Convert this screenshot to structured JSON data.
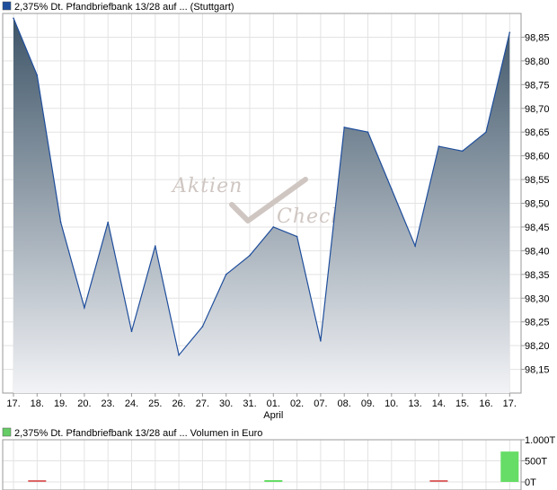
{
  "chart_data": [
    {
      "type": "area",
      "legend": "2,375% Dt. Pfandbriefbank 13/28 auf ... (Stuttgart)",
      "colors": {
        "line": "#1f4e9c",
        "fill_top": "#3e5568",
        "fill_bottom": "#f2f3f6",
        "legend_box": "#1f4e9c"
      },
      "categories": [
        "17.",
        "18.",
        "19.",
        "20.",
        "23.",
        "24.",
        "25.",
        "26.",
        "27.",
        "30.",
        "31.",
        "01.",
        "02.",
        "07.",
        "08.",
        "09.",
        "10.",
        "13.",
        "14.",
        "15.",
        "16.",
        "17."
      ],
      "month_label": "April",
      "month_label_index": 11,
      "values": [
        98.89,
        98.77,
        98.46,
        98.28,
        98.46,
        98.23,
        98.41,
        98.18,
        98.24,
        98.35,
        98.39,
        98.45,
        98.43,
        98.21,
        98.66,
        98.65,
        98.53,
        98.41,
        98.62,
        98.61,
        98.65,
        98.86
      ],
      "ylim": [
        98.1,
        98.9
      ],
      "yticks": [
        98.15,
        98.2,
        98.25,
        98.3,
        98.35,
        98.4,
        98.45,
        98.5,
        98.55,
        98.6,
        98.65,
        98.7,
        98.75,
        98.8,
        98.85
      ],
      "ytick_labels": [
        "98,15",
        "98,20",
        "98,25",
        "98,30",
        "98,35",
        "98,40",
        "98,45",
        "98,50",
        "98,55",
        "98,60",
        "98,65",
        "98,70",
        "98,75",
        "98,80",
        "98,85"
      ],
      "grid": true,
      "watermark": {
        "line1": "Aktien",
        "line2": "Check"
      }
    },
    {
      "type": "bar",
      "legend": "2,375% Dt. Pfandbriefbank 13/28 auf ... Volumen in Euro",
      "colors": {
        "legend_box": "#66cc66",
        "up": "#66dd66",
        "down": "#dd6666"
      },
      "categories": [
        "17.",
        "18.",
        "19.",
        "20.",
        "23.",
        "24.",
        "25.",
        "26.",
        "27.",
        "30.",
        "31.",
        "01.",
        "02.",
        "07.",
        "08.",
        "09.",
        "10.",
        "13.",
        "14.",
        "15.",
        "16.",
        "17."
      ],
      "values": [
        0,
        15,
        0,
        0,
        0,
        0,
        0,
        0,
        0,
        0,
        0,
        15,
        0,
        0,
        0,
        0,
        0,
        0,
        15,
        0,
        0,
        720
      ],
      "bar_colors": [
        "up",
        "down",
        "up",
        "up",
        "up",
        "up",
        "up",
        "up",
        "up",
        "up",
        "up",
        "up",
        "up",
        "up",
        "up",
        "up",
        "up",
        "up",
        "down",
        "up",
        "up",
        "up"
      ],
      "ylim": [
        0,
        1000
      ],
      "yticks": [
        0,
        500,
        1000
      ],
      "ytick_labels": [
        "0T",
        "500T",
        "1.000T"
      ],
      "grid": true
    }
  ]
}
